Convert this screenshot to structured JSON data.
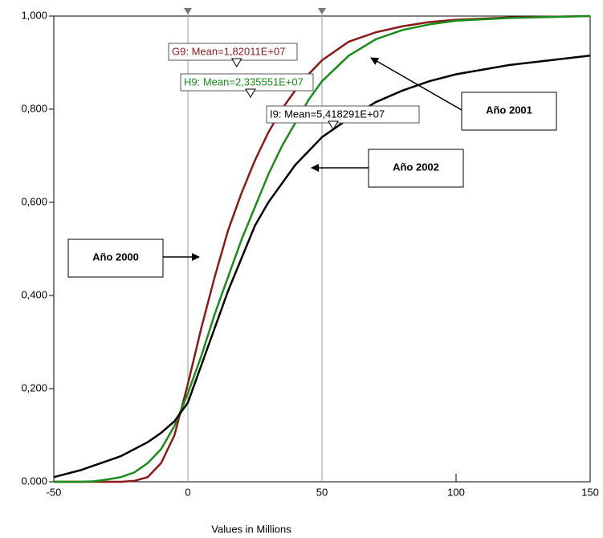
{
  "chart_data": {
    "type": "line",
    "x_label": "Values in Millions",
    "x": [
      -50,
      -40,
      -35,
      -30,
      -25,
      -20,
      -15,
      -10,
      -5,
      0,
      5,
      10,
      15,
      20,
      25,
      30,
      35,
      40,
      45,
      50,
      60,
      70,
      80,
      90,
      100,
      120,
      150
    ],
    "series": [
      {
        "name": "Año 2000",
        "color": "#8b1a1a",
        "mean": 18.2011,
        "mean_label": "G9: Mean=1,82011E+07",
        "values": [
          0,
          0,
          0,
          0,
          0,
          0.002,
          0.01,
          0.04,
          0.1,
          0.21,
          0.33,
          0.44,
          0.54,
          0.62,
          0.69,
          0.75,
          0.8,
          0.84,
          0.875,
          0.905,
          0.945,
          0.965,
          0.978,
          0.987,
          0.992,
          0.997,
          1.0
        ]
      },
      {
        "name": "Año 2001",
        "color": "#1a8c1a",
        "mean": 23.35551,
        "mean_label": "H9: Mean=2,335551E+07",
        "values": [
          0,
          0,
          0.001,
          0.005,
          0.01,
          0.02,
          0.04,
          0.07,
          0.12,
          0.19,
          0.27,
          0.36,
          0.44,
          0.52,
          0.59,
          0.66,
          0.72,
          0.77,
          0.82,
          0.86,
          0.915,
          0.95,
          0.97,
          0.982,
          0.99,
          0.996,
          1.0
        ]
      },
      {
        "name": "Año 2002",
        "color": "#000000",
        "mean": 54.18291,
        "mean_label": "I9: Mean=5,418291E+07",
        "values": [
          0.01,
          0.025,
          0.035,
          0.045,
          0.055,
          0.07,
          0.085,
          0.105,
          0.13,
          0.17,
          0.25,
          0.33,
          0.41,
          0.48,
          0.55,
          0.6,
          0.64,
          0.68,
          0.71,
          0.74,
          0.78,
          0.815,
          0.84,
          0.86,
          0.875,
          0.895,
          0.915
        ]
      }
    ],
    "markers": [
      0,
      50
    ],
    "xlim": [
      -50,
      150
    ],
    "xticks": [
      -50,
      0,
      50,
      100,
      150
    ],
    "ylim": [
      0,
      1
    ],
    "yticks": [
      {
        "value": 0,
        "label": "0.000"
      },
      {
        "value": 0.2,
        "label": "0,200"
      },
      {
        "value": 0.4,
        "label": "0,400"
      },
      {
        "value": 0.6,
        "label": "0,600"
      },
      {
        "value": 0.8,
        "label": "0,800"
      },
      {
        "value": 1,
        "label": "1,000"
      }
    ]
  }
}
